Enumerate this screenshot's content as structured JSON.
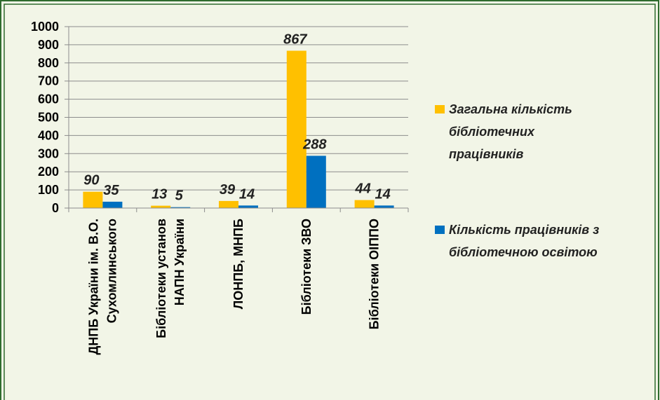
{
  "chart_data": {
    "type": "bar",
    "categories": [
      [
        "ДНПБ України ім. В.О.",
        "Сухомлинського"
      ],
      [
        "Бібліотеки установ",
        "НАПН України"
      ],
      [
        "ЛОНПБ, МНПБ"
      ],
      [
        "Бібліотеки ЗВО"
      ],
      [
        "Бібліотеки ОІППО"
      ]
    ],
    "series": [
      {
        "name": "Загальна кількість бібліотечних працівників",
        "color": "#ffc000",
        "values": [
          90,
          13,
          39,
          867,
          44
        ]
      },
      {
        "name": "Кількість працівників з бібліотечною освітою",
        "color": "#0070c0",
        "values": [
          35,
          5,
          14,
          288,
          14
        ]
      }
    ],
    "ylim": [
      0,
      1000
    ],
    "yticks": [
      0,
      100,
      200,
      300,
      400,
      500,
      600,
      700,
      800,
      900,
      1000
    ],
    "grid": true,
    "legend": "right"
  }
}
